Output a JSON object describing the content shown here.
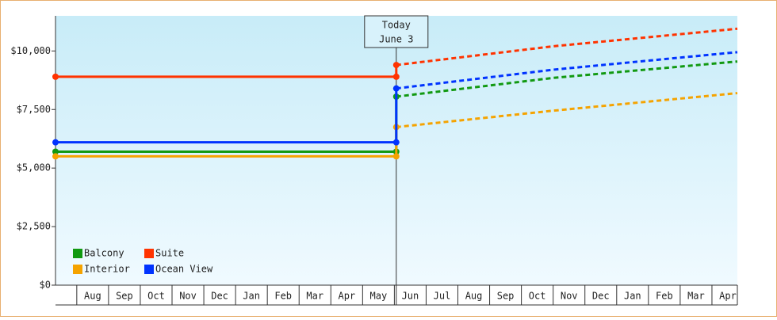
{
  "chart_data": {
    "type": "line",
    "x": [
      0.33,
      11.06,
      11.06,
      16,
      21.8
    ],
    "forecast_start": 2,
    "series": [
      {
        "name": "Balcony",
        "color": "#119911",
        "values": [
          5700,
          5700,
          8050,
          8850,
          9550
        ]
      },
      {
        "name": "Suite",
        "color": "#ff3300",
        "values": [
          8900,
          8900,
          9400,
          10200,
          10950
        ]
      },
      {
        "name": "Interior",
        "color": "#f5a300",
        "values": [
          5500,
          5500,
          6750,
          7450,
          8200
        ]
      },
      {
        "name": "Ocean View",
        "color": "#0033ff",
        "values": [
          6100,
          6100,
          8400,
          9200,
          9950
        ]
      }
    ],
    "annotation": {
      "x": 11.06,
      "lines": [
        "Today",
        "June 3"
      ]
    },
    "xlim": [
      0.33,
      21.8
    ],
    "xticks": [
      {
        "value": 1,
        "label": "Aug"
      },
      {
        "value": 2,
        "label": "Sep"
      },
      {
        "value": 3,
        "label": "Oct"
      },
      {
        "value": 4,
        "label": "Nov"
      },
      {
        "value": 5,
        "label": "Dec"
      },
      {
        "value": 6,
        "label": "Jan"
      },
      {
        "value": 7,
        "label": "Feb"
      },
      {
        "value": 8,
        "label": "Mar"
      },
      {
        "value": 9,
        "label": "Apr"
      },
      {
        "value": 10,
        "label": "May"
      },
      {
        "value": 11,
        "label": "Jun"
      },
      {
        "value": 12,
        "label": "Jul"
      },
      {
        "value": 13,
        "label": "Aug"
      },
      {
        "value": 14,
        "label": "Sep"
      },
      {
        "value": 15,
        "label": "Oct"
      },
      {
        "value": 16,
        "label": "Nov"
      },
      {
        "value": 17,
        "label": "Dec"
      },
      {
        "value": 18,
        "label": "Jan"
      },
      {
        "value": 19,
        "label": "Feb"
      },
      {
        "value": 20,
        "label": "Mar"
      },
      {
        "value": 21,
        "label": "Apr"
      }
    ],
    "ylim": [
      0,
      11500
    ],
    "yticks": [
      {
        "value": 0,
        "label": "$0"
      },
      {
        "value": 2500,
        "label": "$2,500"
      },
      {
        "value": 5000,
        "label": "$5,000"
      },
      {
        "value": 7500,
        "label": "$7,500"
      },
      {
        "value": 10000,
        "label": "$10,000"
      }
    ],
    "legend": "lower left"
  }
}
